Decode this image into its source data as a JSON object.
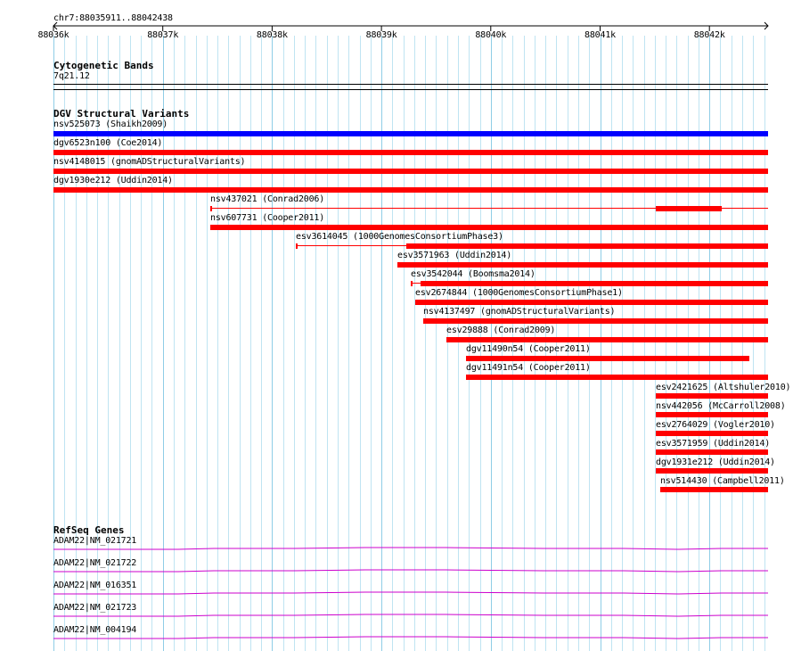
{
  "ruler": {
    "range_label": "chr7:88035911..88042438",
    "ticks": [
      "88036k",
      "88037k",
      "88038k",
      "88039k",
      "88040k",
      "88041k",
      "88042k"
    ]
  },
  "cytoband": {
    "title": "Cytogenetic Bands",
    "band": "7q21.12"
  },
  "dgv": {
    "title": "DGV Structural Variants",
    "variants": [
      {
        "label": "nsv525073 (Shaikh2009)",
        "color": "#0000ff"
      },
      {
        "label": "dgv6523n100 (Coe2014)",
        "color": "#ff0000"
      },
      {
        "label": "nsv4148015 (gnomADStructuralVariants)",
        "color": "#ff0000"
      },
      {
        "label": "dgv1930e212 (Uddin2014)",
        "color": "#ff0000"
      },
      {
        "label": "nsv437021 (Conrad2006)",
        "color": "#ff0000"
      },
      {
        "label": "nsv607731 (Cooper2011)",
        "color": "#ff0000"
      },
      {
        "label": "esv3614045 (1000GenomesConsortiumPhase3)",
        "color": "#ff0000"
      },
      {
        "label": "esv3571963 (Uddin2014)",
        "color": "#ff0000"
      },
      {
        "label": "esv3542044 (Boomsma2014)",
        "color": "#ff0000"
      },
      {
        "label": "esv2674844 (1000GenomesConsortiumPhase1)",
        "color": "#ff0000"
      },
      {
        "label": "nsv4137497 (gnomADStructuralVariants)",
        "color": "#ff0000"
      },
      {
        "label": "esv29888 (Conrad2009)",
        "color": "#ff0000"
      },
      {
        "label": "dgv11490n54 (Cooper2011)",
        "color": "#ff0000"
      },
      {
        "label": "dgv11491n54 (Cooper2011)",
        "color": "#ff0000"
      },
      {
        "label": "esv2421625 (Altshuler2010)",
        "color": "#ff0000"
      },
      {
        "label": "nsv442056 (McCarroll2008)",
        "color": "#ff0000"
      },
      {
        "label": "esv2764029 (Vogler2010)",
        "color": "#ff0000"
      },
      {
        "label": "esv3571959 (Uddin2014)",
        "color": "#ff0000"
      },
      {
        "label": "dgv1931e212 (Uddin2014)",
        "color": "#ff0000"
      },
      {
        "label": "nsv514430 (Campbell2011)",
        "color": "#ff0000"
      }
    ]
  },
  "refseq": {
    "title": "RefSeq Genes",
    "color": "#cc00cc",
    "genes": [
      {
        "label": "ADAM22|NM_021721"
      },
      {
        "label": "ADAM22|NM_021722"
      },
      {
        "label": "ADAM22|NM_016351"
      },
      {
        "label": "ADAM22|NM_021723"
      },
      {
        "label": "ADAM22|NM_004194"
      }
    ]
  }
}
